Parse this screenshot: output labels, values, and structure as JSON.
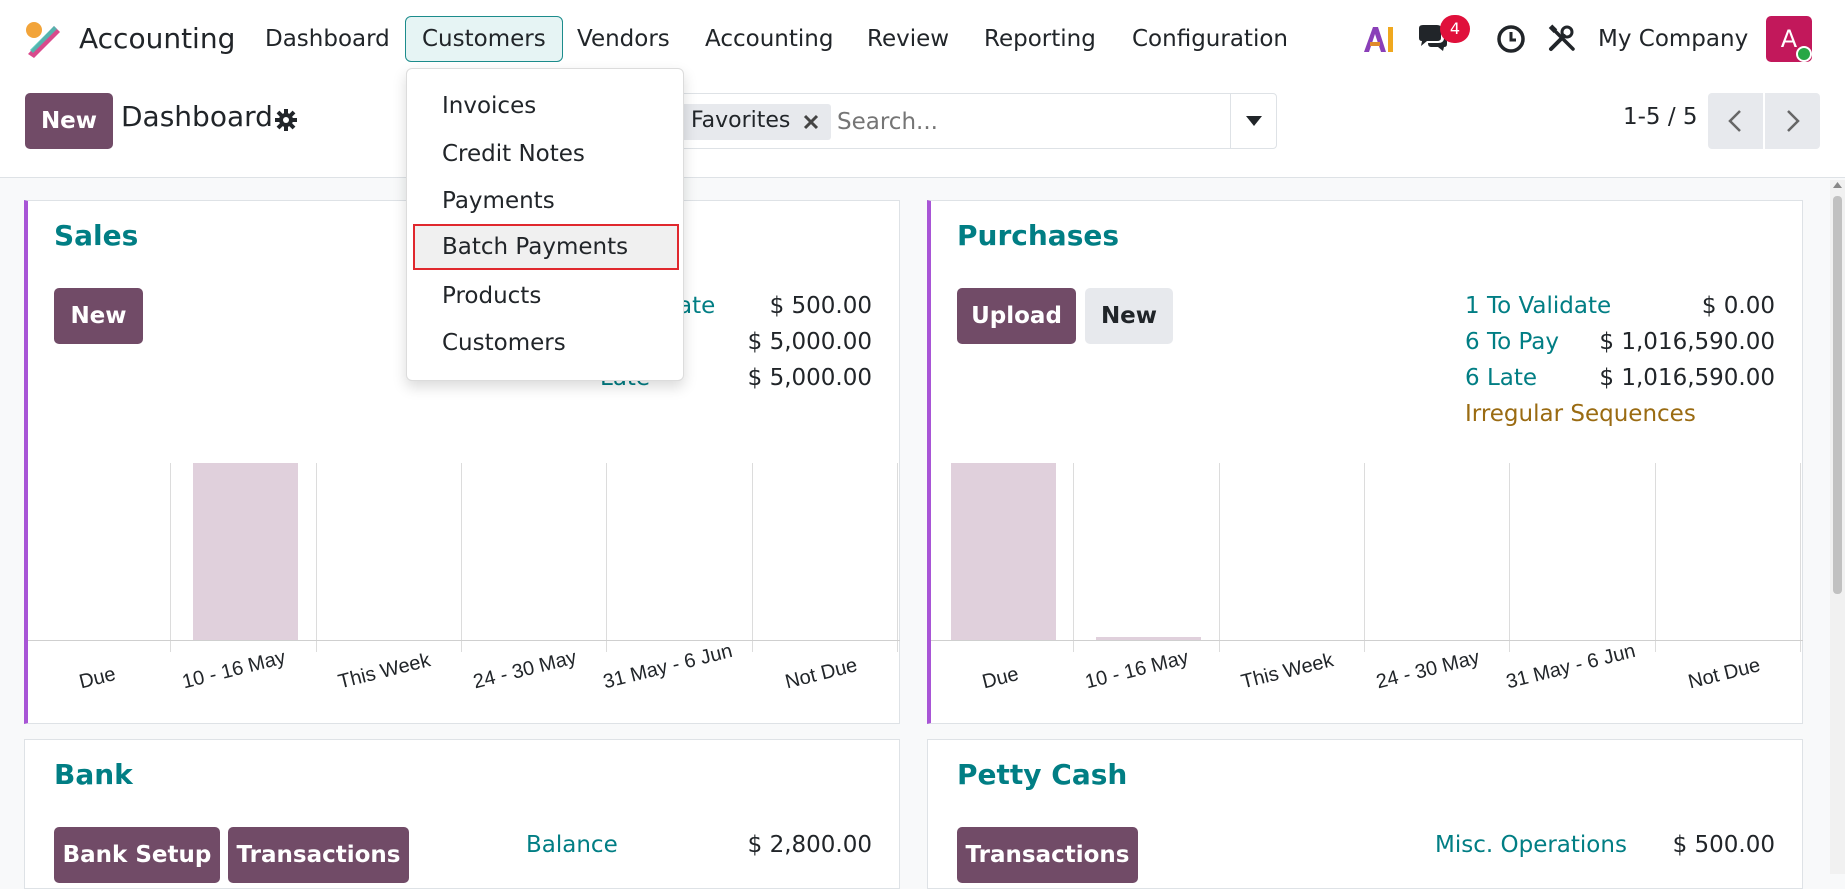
{
  "navbar": {
    "app_name": "Accounting",
    "menu": [
      {
        "label": "Dashboard"
      },
      {
        "label": "Customers"
      },
      {
        "label": "Vendors"
      },
      {
        "label": "Accounting"
      },
      {
        "label": "Review"
      },
      {
        "label": "Reporting"
      },
      {
        "label": "Configuration"
      }
    ],
    "messages_count": "4",
    "company": "My Company",
    "avatar_letter": "A",
    "icons": [
      "ai-icon",
      "chat-icon",
      "clock-icon",
      "tools-icon"
    ]
  },
  "customers_dropdown": {
    "items": [
      {
        "label": "Invoices"
      },
      {
        "label": "Credit Notes"
      },
      {
        "label": "Payments"
      },
      {
        "label": "Batch Payments",
        "highlighted": true
      },
      {
        "label": "Products"
      },
      {
        "label": "Customers"
      }
    ]
  },
  "control_panel": {
    "new_label": "New",
    "breadcrumb": "Dashboard",
    "filter_facet": "Favorites",
    "search_placeholder": "Search...",
    "pager": "1-5 / 5"
  },
  "colors": {
    "brand": "#714b67",
    "teal": "#017e84",
    "accent_border": "#a855d6",
    "warning_text": "#9a6b12",
    "highlight_border": "#e0282e",
    "bar": "#e0d0dc",
    "badge": "#e0103b"
  },
  "sales": {
    "title": "Sales",
    "new_label": "New",
    "stats": [
      {
        "label": "ate",
        "value": "$ 500.00"
      },
      {
        "label": "",
        "value": "$ 5,000.00"
      },
      {
        "label": "Late",
        "value": "$ 5,000.00"
      }
    ]
  },
  "purchases": {
    "title": "Purchases",
    "upload_label": "Upload",
    "new_label": "New",
    "stats": [
      {
        "label": "1 To Validate",
        "value": "$ 0.00"
      },
      {
        "label": "6 To Pay",
        "value": "$ 1,016,590.00"
      },
      {
        "label": "6 Late",
        "value": "$ 1,016,590.00"
      }
    ],
    "warning": "Irregular Sequences"
  },
  "bank": {
    "title": "Bank",
    "setup_label": "Bank Setup",
    "transactions_label": "Transactions",
    "stats": [
      {
        "label": "Balance",
        "value": "$ 2,800.00"
      }
    ]
  },
  "petty_cash": {
    "title": "Petty Cash",
    "transactions_label": "Transactions",
    "stats": [
      {
        "label": "Misc. Operations",
        "value": "$ 500.00"
      }
    ]
  },
  "chart_data": [
    {
      "type": "bar",
      "categories": [
        "Due",
        "10 - 16 May",
        "This Week",
        "24 - 30 May",
        "31 May - 6 Jun",
        "Not Due"
      ],
      "values": [
        0,
        5000,
        0,
        0,
        0,
        0
      ]
    },
    {
      "type": "bar",
      "categories": [
        "Due",
        "10 - 16 May",
        "This Week",
        "24 - 30 May",
        "31 May - 6 Jun",
        "Not Due"
      ],
      "values": [
        1000000,
        16590,
        0,
        0,
        0,
        0
      ]
    }
  ]
}
